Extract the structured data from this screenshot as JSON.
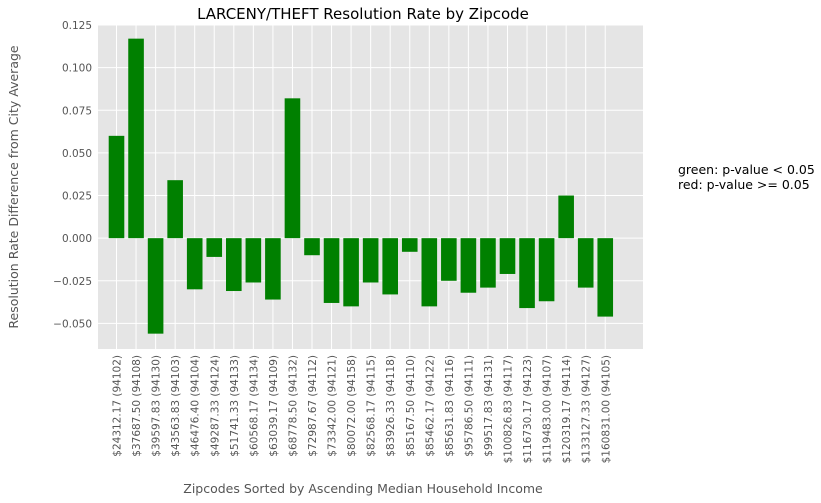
{
  "chart_data": {
    "type": "bar",
    "title": "LARCENY/THEFT Resolution Rate by Zipcode",
    "xlabel": "Zipcodes Sorted by Ascending Median Household Income",
    "ylabel": "Resolution Rate Difference from City Average",
    "ylim": [
      -0.065,
      0.125
    ],
    "yticks": [
      -0.05,
      -0.025,
      0.0,
      0.025,
      0.05,
      0.075,
      0.1,
      0.125
    ],
    "ytick_labels": [
      "−0.050",
      "−0.025",
      "0.000",
      "0.025",
      "0.050",
      "0.075",
      "0.100",
      "0.125"
    ],
    "grid": true,
    "bar_color": "#008000",
    "categories": [
      "$24312.17  (94102)",
      "$37687.50  (94108)",
      "$39597.83  (94130)",
      "$43563.83  (94103)",
      "$46476.40  (94104)",
      "$49287.33  (94124)",
      "$51741.33  (94133)",
      "$60568.17  (94134)",
      "$63039.17  (94109)",
      "$68778.50  (94132)",
      "$72987.67  (94112)",
      "$73342.00  (94121)",
      "$80072.00  (94158)",
      "$82568.17  (94115)",
      "$83926.33  (94118)",
      "$85167.50  (94110)",
      "$85462.17  (94122)",
      "$85631.83  (94116)",
      "$95786.50  (94111)",
      "$99517.83  (94131)",
      "$100826.83  (94117)",
      "$116730.17  (94123)",
      "$119483.00  (94107)",
      "$120319.17  (94114)",
      "$133127.33  (94127)",
      "$160831.00  (94105)"
    ],
    "values": [
      0.06,
      0.117,
      -0.056,
      0.034,
      -0.03,
      -0.011,
      -0.031,
      -0.026,
      -0.036,
      0.082,
      -0.01,
      -0.038,
      -0.04,
      -0.026,
      -0.033,
      -0.008,
      -0.04,
      -0.025,
      -0.032,
      -0.029,
      -0.021,
      -0.041,
      -0.037,
      0.025,
      -0.029,
      -0.046
    ],
    "annotations": [
      "green: p-value < 0.05",
      "red: p-value >= 0.05"
    ]
  }
}
